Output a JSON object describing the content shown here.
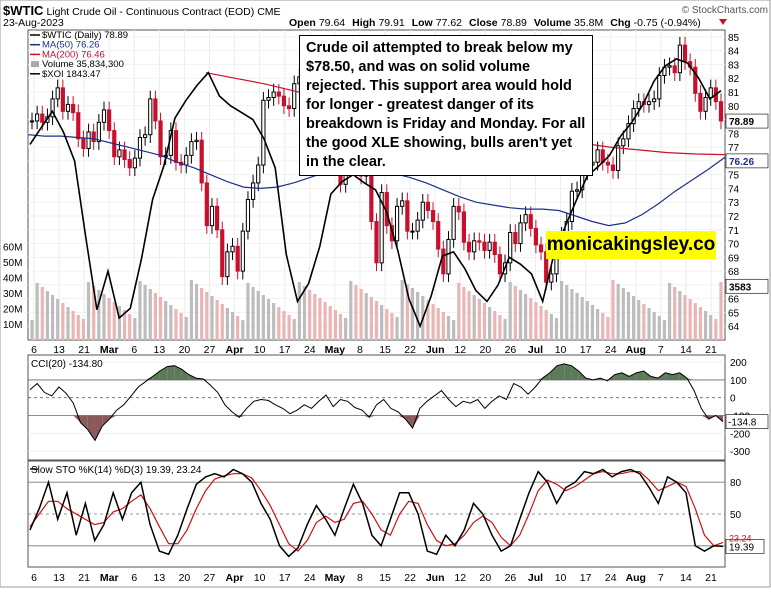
{
  "header": {
    "symbol": "$WTIC",
    "description": "Light Crude Oil - Continuous Contract (EOD)",
    "exchange": "CME",
    "date": "23-Aug-2023",
    "open_label": "Open",
    "open": "79.64",
    "high_label": "High",
    "high": "79.91",
    "low_label": "Low",
    "low": "77.62",
    "close_label": "Close",
    "close": "78.89",
    "volume_label": "Volume",
    "volume": "35.8M",
    "chg_label": "Chg",
    "chg": "-0.75 (-0.94%)",
    "source": "© StockCharts.com"
  },
  "legend": [
    {
      "text": "$WTIC (Daily) 78.89",
      "color": "#000000"
    },
    {
      "text": "MA(50) 76.26",
      "color": "#1f2e8c"
    },
    {
      "text": "MA(200) 76.46",
      "color": "#c8102e"
    },
    {
      "text": "Volume 35,834,300",
      "color": "#888888"
    },
    {
      "text": "$XOI 1843.47",
      "color": "#000000"
    }
  ],
  "annotation": "Crude oil attempted to break below my $78.50, and was on solid volume rejected. This support area would hold for longer - greatest danger of its breakdown is Friday and Monday. For all the good XLE showing, bulls aren't yet in the clear.",
  "brand": "monicakingsley.co",
  "colors": {
    "up": "#000000",
    "down": "#c8102e",
    "ma50": "#1f2e8c",
    "ma200": "#c8102e",
    "cci_fill_pos": "#5a7a5a",
    "cci_fill_neg": "#8a5a5a",
    "k_line": "#000000",
    "d_line": "#d01010",
    "vol_up": "#bdbdbd",
    "vol_down": "#e9b5b5"
  },
  "chart_data": [
    {
      "type": "candlestick",
      "title": "$WTIC Light Crude Oil - Continuous Contract (EOD)",
      "x_labels": [
        "6",
        "13",
        "21",
        "Mar",
        "6",
        "13",
        "20",
        "27",
        "Apr",
        "10",
        "17",
        "24",
        "May",
        "8",
        "15",
        "22",
        "Jun",
        "12",
        "20",
        "26",
        "Jul",
        "10",
        "17",
        "24",
        "Aug",
        "7",
        "14",
        "21"
      ],
      "y_ticks": [
        64,
        65,
        66,
        67,
        68,
        69,
        70,
        71,
        72,
        73,
        74,
        75,
        76,
        77,
        78,
        79,
        80,
        81,
        82,
        83,
        84,
        85
      ],
      "ylim": [
        63,
        85.5
      ],
      "volume_ticks": [
        "10M",
        "20M",
        "30M",
        "40M",
        "50M",
        "60M"
      ],
      "last_close": 78.89,
      "ma50_last": 76.26,
      "ma200_last": 76.46,
      "xoi_last": 1843.47,
      "xoi_tag": "3583",
      "close_series": [
        78.9,
        79.4,
        78.8,
        79.2,
        80.5,
        81.3,
        79.6,
        80.1,
        79.5,
        77.6,
        76.9,
        78.1,
        77.4,
        78.8,
        79.7,
        78.2,
        76.3,
        76.8,
        76.1,
        75.5,
        76.2,
        77.7,
        77.9,
        80.5,
        78.9,
        76.3,
        76.4,
        78.2,
        75.9,
        75.7,
        76.4,
        77.4,
        77.5,
        74.4,
        71.3,
        72.7,
        71.0,
        67.6,
        69.4,
        69.8,
        68.0,
        70.9,
        73.2,
        74.4,
        75.7,
        80.4,
        80.6,
        81.0,
        80.7,
        80.0,
        79.8,
        81.6,
        82.1,
        83.2,
        82.5,
        80.8,
        79.2,
        78.5,
        77.5,
        77.4,
        74.3,
        76.8,
        78.3,
        76.6,
        74.9,
        75.0,
        71.6,
        68.6,
        73.7,
        71.3,
        70.2,
        72.7,
        73.1,
        70.9,
        70.9,
        71.7,
        73.0,
        72.4,
        71.6,
        69.6,
        67.8,
        70.3,
        72.7,
        72.3,
        70.1,
        69.4,
        70.2,
        70.1,
        69.5,
        70.1,
        69.2,
        67.8,
        68.6,
        70.8,
        70.0,
        71.5,
        72.1,
        71.1,
        69.9,
        69.4,
        67.2,
        67.8,
        69.7,
        70.6,
        71.6,
        73.8,
        73.9,
        75.2,
        75.7,
        75.9,
        76.8,
        75.9,
        75.7,
        75.3,
        77.1,
        77.6,
        78.7,
        79.8,
        80.3,
        80.1,
        80.3,
        80.5,
        82.2,
        82.8,
        82.9,
        82.4,
        84.4,
        83.2,
        82.8,
        80.9,
        79.6,
        80.6,
        81.3,
        80.3,
        78.9
      ],
      "ma50_series": [
        77.9,
        77.8,
        77.8,
        77.7,
        77.6,
        77.3,
        77.0,
        76.7,
        76.4,
        75.9,
        75.5,
        75.0,
        74.5,
        74.1,
        74.0,
        74.1,
        74.4,
        74.8,
        75.2,
        75.5,
        75.6,
        75.4,
        75.1,
        74.8,
        74.4,
        73.9,
        73.4,
        73.0,
        72.8,
        72.6,
        72.5,
        72.5,
        72.4,
        72.0,
        71.6,
        71.3,
        71.5,
        72.1,
        72.9,
        73.8,
        74.6,
        75.4,
        76.26
      ],
      "ma200_series": [
        82.4,
        82.0,
        81.6,
        81.1,
        80.6,
        80.1,
        79.7,
        79.3,
        78.9,
        78.6,
        78.2,
        77.9,
        77.6,
        77.3,
        77.0,
        76.8,
        76.6,
        76.5,
        76.46
      ],
      "xoi_series": [
        77.2,
        78.4,
        79.6,
        78.1,
        76.0,
        70.5,
        65.2,
        68.0,
        64.6,
        65.3,
        68.9,
        73.2,
        75.6,
        79.1,
        80.4,
        81.5,
        82.4,
        80.7,
        80.0,
        79.5,
        79.0,
        77.6,
        75.5,
        69.2,
        65.8,
        67.1,
        69.8,
        73.6,
        74.5,
        75.0,
        74.4,
        73.9,
        72.3,
        69.5,
        66.0,
        64.0,
        66.2,
        69.1,
        69.4,
        68.2,
        66.6,
        65.8,
        67.0,
        69.0,
        68.5,
        67.8,
        65.8,
        69.2,
        71.2,
        73.1,
        74.9,
        75.6,
        76.4,
        77.8,
        78.8,
        80.1,
        81.8,
        82.9,
        83.4,
        83.1,
        82.0,
        80.5,
        81.1
      ]
    },
    {
      "type": "line",
      "title": "CCI(20) -134.80",
      "y_ticks": [
        -300,
        -200,
        -100,
        0,
        100,
        200
      ],
      "ylim": [
        -350,
        240
      ],
      "last_value": -134.8,
      "values": [
        45,
        80,
        30,
        10,
        60,
        25,
        -30,
        -140,
        -180,
        -240,
        -160,
        -120,
        -70,
        -40,
        10,
        60,
        90,
        120,
        150,
        175,
        180,
        160,
        130,
        110,
        105,
        70,
        30,
        -40,
        -80,
        -110,
        -60,
        -20,
        -10,
        -15,
        -40,
        -60,
        -90,
        -70,
        -40,
        -60,
        -20,
        15,
        -50,
        -10,
        -20,
        -55,
        -70,
        -110,
        -40,
        -10,
        -60,
        -80,
        -120,
        -170,
        -60,
        -20,
        10,
        40,
        -10,
        -50,
        -20,
        -30,
        -10,
        -60,
        -20,
        10,
        -10,
        80,
        60,
        20,
        60,
        110,
        140,
        180,
        190,
        180,
        150,
        110,
        100,
        110,
        95,
        130,
        140,
        120,
        140,
        150,
        120,
        110,
        140,
        130,
        140,
        110,
        40,
        -60,
        -120,
        -100,
        -134.8
      ]
    },
    {
      "type": "line",
      "title": "Slow STO %K(14) %D(3) 19.39, 23.24",
      "y_ticks": [
        20,
        50,
        80
      ],
      "ylim": [
        0,
        100
      ],
      "series": [
        {
          "name": "%K(14)",
          "last": 19.39,
          "values": [
            35,
            55,
            80,
            45,
            70,
            30,
            60,
            25,
            40,
            70,
            45,
            70,
            80,
            40,
            15,
            12,
            30,
            55,
            78,
            85,
            88,
            85,
            92,
            88,
            80,
            60,
            45,
            20,
            10,
            18,
            40,
            58,
            45,
            30,
            55,
            78,
            60,
            30,
            20,
            45,
            70,
            70,
            50,
            15,
            12,
            30,
            20,
            35,
            60,
            50,
            30,
            15,
            20,
            45,
            70,
            90,
            80,
            60,
            75,
            80,
            90,
            88,
            92,
            85,
            90,
            92,
            88,
            75,
            60,
            85,
            80,
            70,
            20,
            15,
            20,
            19.39
          ]
        },
        {
          "name": "%D(3)",
          "last": 23.24,
          "values": [
            38,
            50,
            62,
            62,
            55,
            50,
            45,
            40,
            42,
            52,
            55,
            62,
            68,
            55,
            38,
            22,
            22,
            35,
            55,
            72,
            83,
            86,
            88,
            88,
            84,
            72,
            58,
            40,
            22,
            15,
            25,
            42,
            48,
            42,
            45,
            60,
            62,
            50,
            35,
            30,
            50,
            62,
            60,
            40,
            25,
            20,
            22,
            30,
            42,
            48,
            42,
            28,
            20,
            30,
            50,
            72,
            82,
            78,
            72,
            76,
            82,
            88,
            90,
            88,
            88,
            90,
            90,
            82,
            72,
            76,
            80,
            76,
            55,
            30,
            20,
            23.24
          ]
        }
      ]
    }
  ]
}
